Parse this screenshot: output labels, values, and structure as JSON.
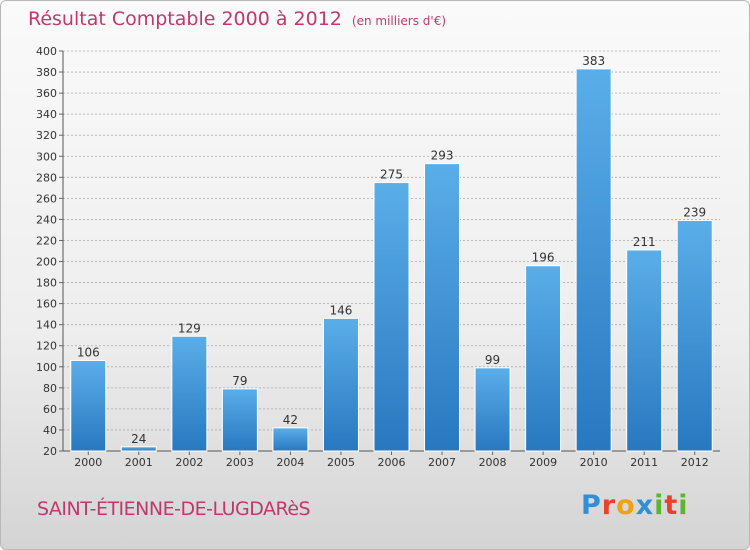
{
  "header": {
    "title": "Résultat Comptable 2000 à 2012",
    "subtitle": "(en milliers d'€)"
  },
  "footer": {
    "commune": "SAINT-ÉTIENNE-DE-LUGDARèS",
    "logo_letters": [
      "P",
      "r",
      "o",
      "x",
      "i",
      "t",
      "i"
    ],
    "logo_colors": [
      "#2f8fd8",
      "#e8412e",
      "#f1a114",
      "#2f8fd8",
      "#5cb531",
      "#e8412e",
      "#5cb531"
    ]
  },
  "colors": {
    "bar": "#4a9fe0",
    "bar_dark": "#2878c0",
    "title": "#c0386d",
    "grid": "#aaaaaa"
  },
  "chart_data": {
    "type": "bar",
    "title": "Résultat Comptable 2000 à 2012",
    "xlabel": "",
    "ylabel": "",
    "categories": [
      "2000",
      "2001",
      "2002",
      "2003",
      "2004",
      "2005",
      "2006",
      "2007",
      "2008",
      "2009",
      "2010",
      "2011",
      "2012"
    ],
    "values": [
      106,
      24,
      129,
      79,
      42,
      146,
      275,
      293,
      99,
      196,
      383,
      211,
      239
    ],
    "ylim": [
      20,
      400
    ],
    "yticks": [
      20,
      40,
      60,
      80,
      100,
      120,
      140,
      160,
      180,
      200,
      220,
      240,
      260,
      280,
      300,
      320,
      340,
      360,
      380,
      400
    ],
    "grid": true
  }
}
